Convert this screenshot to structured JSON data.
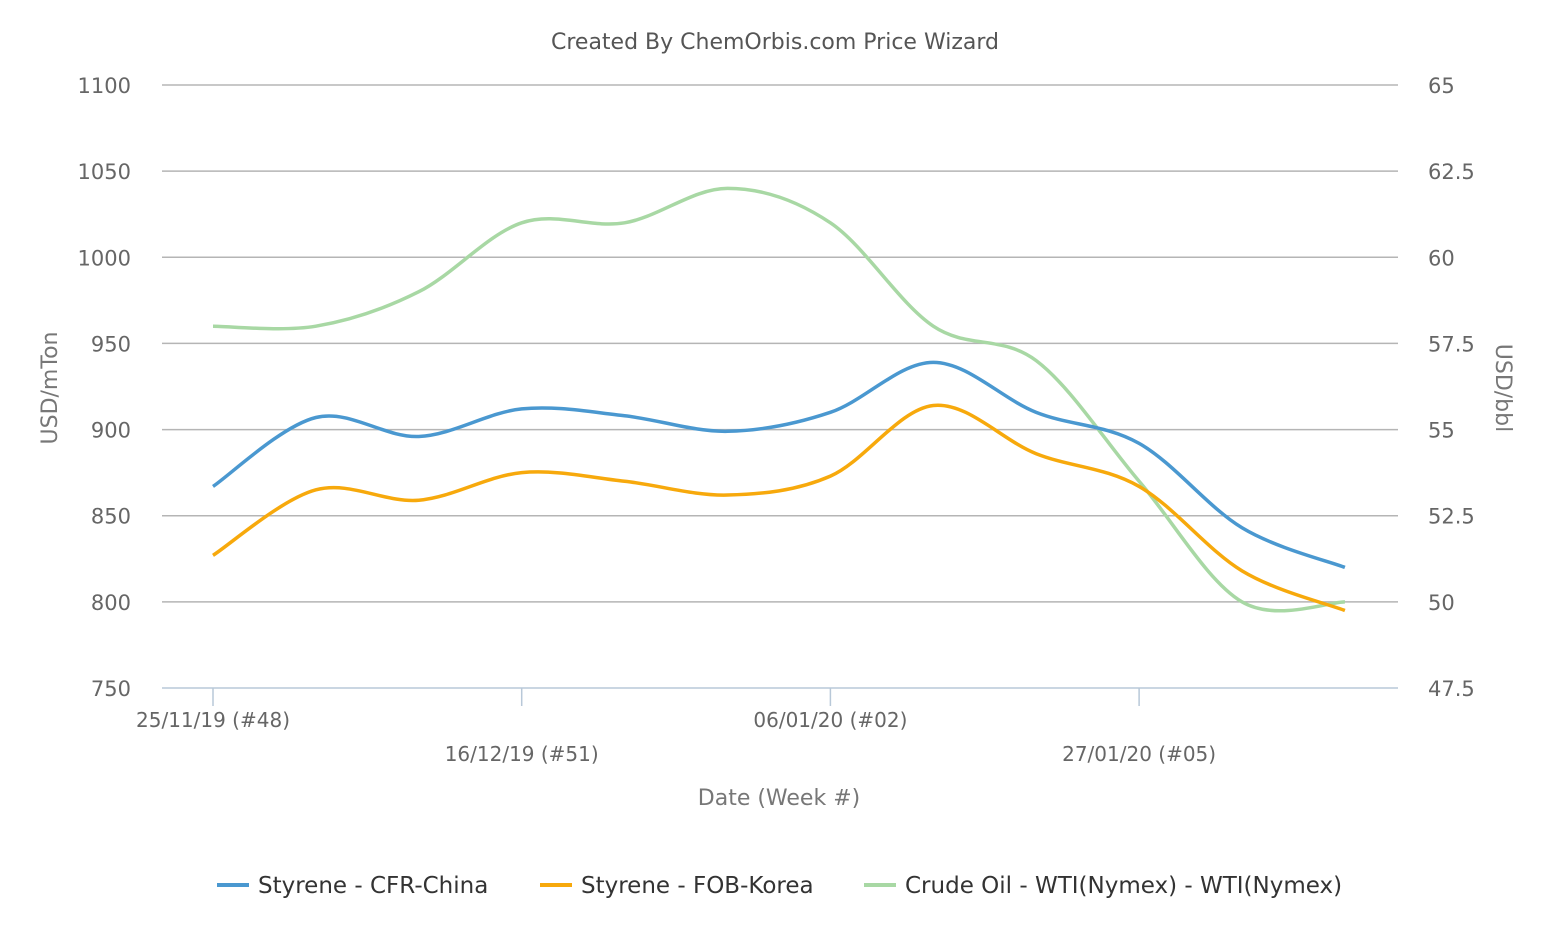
{
  "chart_data": {
    "type": "line",
    "title": "Created By ChemOrbis.com Price Wizard",
    "xlabel": "Date (Week #)",
    "ylabel": "USD/mTon",
    "y2label": "USD/bbl",
    "x_ticks": [
      "25/11/19 (#48)",
      "16/12/19 (#51)",
      "06/01/20 (#02)",
      "27/01/20 (#05)"
    ],
    "x_weeks": 12,
    "ylim": [
      750,
      1100
    ],
    "yticks": [
      750,
      800,
      850,
      900,
      950,
      1000,
      1050,
      1100
    ],
    "y2lim": [
      47.5,
      65
    ],
    "y2ticks": [
      "47.5",
      "50",
      "52.5",
      "55",
      "57.5",
      "60",
      "62.5",
      "65"
    ],
    "grid": true,
    "legend": "bottom",
    "series": [
      {
        "name": "Styrene - CFR-China",
        "axis": "left",
        "color": "#4a98d0",
        "values": [
          867,
          907,
          896,
          912,
          908,
          899,
          910,
          939,
          910,
          892,
          843,
          820
        ]
      },
      {
        "name": "Styrene - FOB-Korea",
        "axis": "left",
        "color": "#f7a90c",
        "values": [
          827,
          865,
          859,
          875,
          870,
          862,
          873,
          914,
          886,
          867,
          818,
          795
        ]
      },
      {
        "name": "Crude Oil - WTI(Nymex) - WTI(Nymex)",
        "axis": "right",
        "color": "#a8d8a4",
        "values": [
          58,
          58,
          59,
          61,
          61,
          62,
          61,
          58,
          57,
          53.5,
          50,
          50
        ]
      }
    ]
  }
}
